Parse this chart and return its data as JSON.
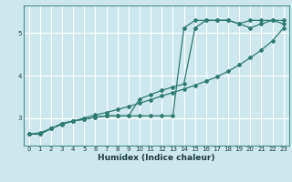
{
  "xlabel": "Humidex (Indice chaleur)",
  "bg_color": "#cce8ec",
  "grid_color": "#ffffff",
  "line_color": "#2d7a6e",
  "xlim": [
    -0.5,
    23.5
  ],
  "ylim": [
    2.35,
    5.65
  ],
  "yticks": [
    3,
    4,
    5
  ],
  "xticks": [
    0,
    1,
    2,
    3,
    4,
    5,
    6,
    7,
    8,
    9,
    10,
    11,
    12,
    13,
    14,
    15,
    16,
    17,
    18,
    19,
    20,
    21,
    22,
    23
  ],
  "line1_x": [
    0,
    1,
    2,
    3,
    4,
    5,
    6,
    7,
    8,
    9,
    10,
    11,
    12,
    13,
    14,
    15,
    16,
    17,
    18,
    19,
    20,
    21,
    22,
    23
  ],
  "line1_y": [
    2.62,
    2.62,
    2.75,
    2.87,
    2.93,
    2.97,
    3.02,
    3.05,
    3.05,
    3.05,
    3.05,
    3.05,
    3.05,
    3.05,
    5.12,
    5.3,
    5.3,
    5.3,
    5.3,
    5.22,
    5.3,
    5.3,
    5.3,
    5.3
  ],
  "line2_x": [
    0,
    1,
    2,
    3,
    4,
    5,
    6,
    7,
    8,
    9,
    10,
    11,
    12,
    13,
    14,
    15,
    16,
    17,
    18,
    19,
    20,
    21,
    22,
    23
  ],
  "line2_y": [
    2.62,
    2.62,
    2.75,
    2.87,
    2.93,
    2.97,
    3.02,
    3.05,
    3.05,
    3.05,
    3.45,
    3.55,
    3.65,
    3.73,
    3.8,
    5.12,
    5.3,
    5.3,
    5.3,
    5.22,
    5.12,
    5.22,
    5.3,
    5.22
  ],
  "line3_x": [
    0,
    1,
    2,
    3,
    4,
    5,
    6,
    7,
    8,
    9,
    10,
    11,
    12,
    13,
    14,
    15,
    16,
    17,
    18,
    19,
    20,
    21,
    22,
    23
  ],
  "line3_y": [
    2.62,
    2.65,
    2.75,
    2.85,
    2.93,
    3.0,
    3.07,
    3.13,
    3.2,
    3.27,
    3.35,
    3.43,
    3.52,
    3.6,
    3.68,
    3.77,
    3.87,
    3.97,
    4.1,
    4.25,
    4.42,
    4.6,
    4.82,
    5.12
  ]
}
